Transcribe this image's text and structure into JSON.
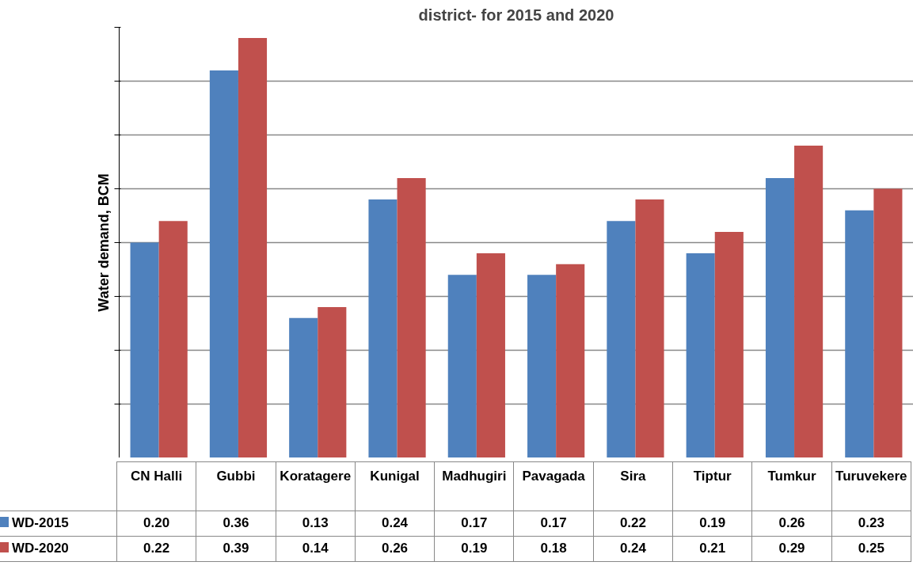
{
  "chart_data": {
    "type": "bar",
    "title": "district- for 2015 and 2020",
    "ylabel": "Water demand, BCM",
    "categories": [
      "CN Halli",
      "Gubbi",
      "Koratagere",
      "Kunigal",
      "Madhugiri",
      "Pavagada",
      "Sira",
      "Tiptur",
      "Tumkur",
      "Turuvekere"
    ],
    "series": [
      {
        "name": "WD-2015",
        "color": "#4f81bd",
        "values": [
          0.2,
          0.36,
          0.13,
          0.24,
          0.17,
          0.17,
          0.22,
          0.19,
          0.26,
          0.23
        ],
        "value_labels": [
          "0.20",
          "0.36",
          "0.13",
          "0.24",
          "0.17",
          "0.17",
          "0.22",
          "0.19",
          "0.26",
          "0.23"
        ]
      },
      {
        "name": "WD-2020",
        "color": "#c0504d",
        "values": [
          0.22,
          0.39,
          0.14,
          0.26,
          0.19,
          0.18,
          0.24,
          0.21,
          0.29,
          0.25
        ],
        "value_labels": [
          "0.22",
          "0.39",
          "0.14",
          "0.26",
          "0.19",
          "0.18",
          "0.24",
          "0.21",
          "0.29",
          "0.25"
        ]
      }
    ],
    "ylim": [
      0,
      0.4
    ],
    "yticks": [
      {
        "value": 0,
        "label": null
      },
      {
        "value": 0.05,
        "label": null
      },
      {
        "value": 0.1,
        "label": null
      },
      {
        "value": 0.15,
        "label": null
      },
      {
        "value": 0.2,
        "label": null
      },
      {
        "value": 0.25,
        "label": null
      },
      {
        "value": 0.3,
        "label": null
      },
      {
        "value": 0.35,
        "label": null
      },
      {
        "value": 0.4,
        "label": null
      }
    ],
    "grid": "y",
    "legend": "bottom"
  }
}
